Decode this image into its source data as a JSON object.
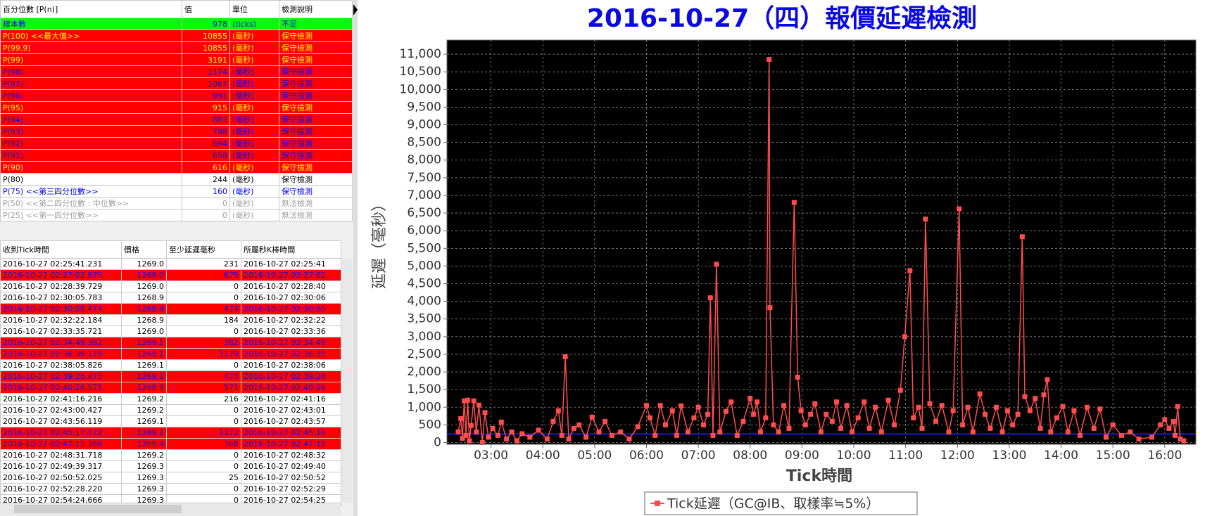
{
  "percentile_table": {
    "headers": [
      "百分位數 [P(n)]",
      "值",
      "單位",
      "檢測說明"
    ],
    "rows": [
      {
        "cells": [
          "樣本數",
          978,
          "(ticks)",
          "不足"
        ],
        "bg": "#00ff00",
        "fg": "#0000ff",
        "bold": false
      },
      {
        "cells": [
          "P(100) <<最大值>>",
          10855,
          "(毫秒)",
          "保守檢測"
        ],
        "bg": "#ff0000",
        "fg": "#ffff00",
        "bold": true
      },
      {
        "cells": [
          "P(99.9)",
          10855,
          "(毫秒)",
          "保守檢測"
        ],
        "bg": "#ff0000",
        "fg": "#ffff00",
        "bold": true
      },
      {
        "cells": [
          "P(99)",
          3191,
          "(毫秒)",
          "保守檢測"
        ],
        "bg": "#ff0000",
        "fg": "#ffff00",
        "bold": true
      },
      {
        "cells": [
          "P(98)",
          1174,
          "(毫秒)",
          "保守檢測"
        ],
        "bg": "#ff0000",
        "fg": "#0000ff",
        "bold": false
      },
      {
        "cells": [
          "P(97)",
          1067,
          "(毫秒)",
          "保守檢測"
        ],
        "bg": "#ff0000",
        "fg": "#0000ff",
        "bold": false
      },
      {
        "cells": [
          "P(96)",
          991,
          "(毫秒)",
          "保守檢測"
        ],
        "bg": "#ff0000",
        "fg": "#0000ff",
        "bold": false
      },
      {
        "cells": [
          "P(95)",
          915,
          "(毫秒)",
          "保守檢測"
        ],
        "bg": "#ff0000",
        "fg": "#ffff00",
        "bold": true
      },
      {
        "cells": [
          "P(94)",
          883,
          "(毫秒)",
          "保守檢測"
        ],
        "bg": "#ff0000",
        "fg": "#0000ff",
        "bold": false
      },
      {
        "cells": [
          "P(93)",
          798,
          "(毫秒)",
          "保守檢測"
        ],
        "bg": "#ff0000",
        "fg": "#0000ff",
        "bold": false
      },
      {
        "cells": [
          "P(92)",
          694,
          "(毫秒)",
          "保守檢測"
        ],
        "bg": "#ff0000",
        "fg": "#0000ff",
        "bold": false
      },
      {
        "cells": [
          "P(91)",
          658,
          "(毫秒)",
          "保守檢測"
        ],
        "bg": "#ff0000",
        "fg": "#0000ff",
        "bold": false
      },
      {
        "cells": [
          "P(90)",
          616,
          "(毫秒)",
          "保守檢測"
        ],
        "bg": "#ff0000",
        "fg": "#ffff00",
        "bold": true
      },
      {
        "cells": [
          "P(80)",
          244,
          "(毫秒)",
          "保守檢測"
        ],
        "bg": "#ffffff",
        "fg": "#000000",
        "bold": false
      },
      {
        "cells": [
          "P(75) <<第三四分位數>>",
          160,
          "(毫秒)",
          "保守檢測"
        ],
        "bg": "#ffffff",
        "fg": "#0000ff",
        "bold": true
      },
      {
        "cells": [
          "P(50) <<第二四分位數 : 中位數>>",
          0,
          "(毫秒)",
          "無法檢測"
        ],
        "bg": "#ffffff",
        "fg": "#a0a0a0",
        "bold": false
      },
      {
        "cells": [
          "P(25) <<第一四分位數>>",
          0,
          "(毫秒)",
          "無法檢測"
        ],
        "bg": "#ffffff",
        "fg": "#a0a0a0",
        "bold": false
      }
    ]
  },
  "tick_table": {
    "headers": [
      "收到Tick時間",
      "價格",
      "至少延遲毫秒",
      "所屬秒K棒時間"
    ],
    "rows": [
      {
        "cells": [
          "2016-10-27 02:25:41.231",
          "1269.0",
          231,
          "2016-10-27 02:25:41"
        ],
        "bg": "#ffffff",
        "fg": "#000000"
      },
      {
        "cells": [
          "2016-10-27 02:27:02.675",
          "1269.0",
          675,
          "2016-10-27 02:27:02"
        ],
        "bg": "#ff0000",
        "fg": "#0000ff"
      },
      {
        "cells": [
          "2016-10-27 02:28:39.729",
          "1269.0",
          0,
          "2016-10-27 02:28:40"
        ],
        "bg": "#ffffff",
        "fg": "#000000"
      },
      {
        "cells": [
          "2016-10-27 02:30:05.783",
          "1268.9",
          0,
          "2016-10-27 02:30:06"
        ],
        "bg": "#ffffff",
        "fg": "#000000"
      },
      {
        "cells": [
          "2016-10-27 02:30:50.474",
          "1268.8",
          474,
          "2016-10-27 02:30:50"
        ],
        "bg": "#ff0000",
        "fg": "#0000ff"
      },
      {
        "cells": [
          "2016-10-27 02:32:22.184",
          "1268.9",
          184,
          "2016-10-27 02:32:22"
        ],
        "bg": "#ffffff",
        "fg": "#000000"
      },
      {
        "cells": [
          "2016-10-27 02:33:35.721",
          "1269.0",
          0,
          "2016-10-27 02:33:36"
        ],
        "bg": "#ffffff",
        "fg": "#000000"
      },
      {
        "cells": [
          "2016-10-27 02:34:49.382",
          "1269.1",
          382,
          "2016-10-27 02:34:49"
        ],
        "bg": "#ff0000",
        "fg": "#0000ff"
      },
      {
        "cells": [
          "2016-10-27 02:36:36.179",
          "1269.1",
          1179,
          "2016-10-27 02:36:35"
        ],
        "bg": "#ff0000",
        "fg": "#0000ff"
      },
      {
        "cells": [
          "2016-10-27 02:38:05.826",
          "1269.1",
          0,
          "2016-10-27 02:38:06"
        ],
        "bg": "#ffffff",
        "fg": "#000000"
      },
      {
        "cells": [
          "2016-10-27 02:39:28.473",
          "1269.1",
          473,
          "2016-10-27 02:39:28"
        ],
        "bg": "#ff0000",
        "fg": "#0000ff"
      },
      {
        "cells": [
          "2016-10-27 02:40:26.571",
          "1268.9",
          571,
          "2016-10-27 02:40:26"
        ],
        "bg": "#ff0000",
        "fg": "#0000ff"
      },
      {
        "cells": [
          "2016-10-27 02:41:16.216",
          "1269.2",
          216,
          "2016-10-27 02:41:16"
        ],
        "bg": "#ffffff",
        "fg": "#000000"
      },
      {
        "cells": [
          "2016-10-27 02:43:00.427",
          "1269.2",
          0,
          "2016-10-27 02:43:01"
        ],
        "bg": "#ffffff",
        "fg": "#000000"
      },
      {
        "cells": [
          "2016-10-27 02:43:56.119",
          "1269.1",
          0,
          "2016-10-27 02:43:57"
        ],
        "bg": "#ffffff",
        "fg": "#000000"
      },
      {
        "cells": [
          "2016-10-27 02:45:17.172",
          "1269.1",
          1172,
          "2016-10-27 02:45:16"
        ],
        "bg": "#ff0000",
        "fg": "#0000ff"
      },
      {
        "cells": [
          "2016-10-27 02:47:15.368",
          "1269.4",
          368,
          "2016-10-27 02:47:15"
        ],
        "bg": "#ff0000",
        "fg": "#0000ff"
      },
      {
        "cells": [
          "2016-10-27 02:48:31.718",
          "1269.2",
          0,
          "2016-10-27 02:48:32"
        ],
        "bg": "#ffffff",
        "fg": "#000000"
      },
      {
        "cells": [
          "2016-10-27 02:49:39.317",
          "1269.3",
          0,
          "2016-10-27 02:49:40"
        ],
        "bg": "#ffffff",
        "fg": "#000000"
      },
      {
        "cells": [
          "2016-10-27 02:50:52.025",
          "1269.3",
          25,
          "2016-10-27 02:50:52"
        ],
        "bg": "#ffffff",
        "fg": "#000000"
      },
      {
        "cells": [
          "2016-10-27 02:52:28.220",
          "1269.3",
          0,
          "2016-10-27 02:52:29"
        ],
        "bg": "#ffffff",
        "fg": "#000000"
      },
      {
        "cells": [
          "2016-10-27 02:54:24.666",
          "1269.3",
          0,
          "2016-10-27 02:54:25"
        ],
        "bg": "#ffffff",
        "fg": "#000000"
      }
    ]
  },
  "chart": {
    "type": "line",
    "title": "2016-10-27（四）報價延遲檢測",
    "x_label": "Tick時間",
    "y_label": "延遲（毫秒）",
    "xlim": [
      "02:09",
      "16:36"
    ],
    "xticks": [
      "03:00",
      "04:00",
      "05:00",
      "06:00",
      "07:00",
      "08:00",
      "09:00",
      "10:00",
      "11:00",
      "12:00",
      "13:00",
      "14:00",
      "15:00",
      "16:00"
    ],
    "ylim": [
      -50,
      11400
    ],
    "yticks": [
      {
        "value": 0,
        "label": "0"
      },
      {
        "value": 500,
        "label": "500"
      },
      {
        "value": 1000,
        "label": "1,000"
      },
      {
        "value": 1500,
        "label": "1,500"
      },
      {
        "value": 2000,
        "label": "2,000"
      },
      {
        "value": 2500,
        "label": "2,500"
      },
      {
        "value": 3000,
        "label": "3,000"
      },
      {
        "value": 3500,
        "label": "3,500"
      },
      {
        "value": 4000,
        "label": "4,000"
      },
      {
        "value": 4500,
        "label": "4,500"
      },
      {
        "value": 5000,
        "label": "5,000"
      },
      {
        "value": 5500,
        "label": "5,500"
      },
      {
        "value": 6000,
        "label": "6,000"
      },
      {
        "value": 6500,
        "label": "6,500"
      },
      {
        "value": 7000,
        "label": "7,000"
      },
      {
        "value": 7500,
        "label": "7,500"
      },
      {
        "value": 8000,
        "label": "8,000"
      },
      {
        "value": 8500,
        "label": "8,500"
      },
      {
        "value": 9000,
        "label": "9,000"
      },
      {
        "value": 9500,
        "label": "9,500"
      },
      {
        "value": 10000,
        "label": "10,000"
      },
      {
        "value": 10500,
        "label": "10,500"
      },
      {
        "value": 11000,
        "label": "11,000"
      }
    ],
    "grid": true,
    "background": "#000000",
    "reference_line": {
      "value": 240,
      "color": "#1a1ad0"
    },
    "series": [
      {
        "name": "Tick延遲（GC@IB、取樣率≒5%）",
        "color": "#ff4d4d",
        "x": [
          "02:22",
          "02:25",
          "02:27",
          "02:29",
          "02:31",
          "02:33",
          "02:35",
          "02:37",
          "02:40",
          "02:43",
          "02:46",
          "02:50",
          "02:53",
          "02:57",
          "03:02",
          "03:08",
          "03:12",
          "03:18",
          "03:24",
          "03:30",
          "03:36",
          "03:45",
          "03:55",
          "04:05",
          "04:12",
          "04:18",
          "04:22",
          "04:26",
          "04:30",
          "04:36",
          "04:42",
          "04:50",
          "04:57",
          "05:05",
          "05:12",
          "05:20",
          "05:30",
          "05:40",
          "05:50",
          "06:00",
          "06:04",
          "06:10",
          "06:16",
          "06:22",
          "06:30",
          "06:35",
          "06:40",
          "06:48",
          "06:55",
          "07:00",
          "07:06",
          "07:11",
          "07:14",
          "07:17",
          "07:21",
          "07:25",
          "07:32",
          "07:38",
          "07:45",
          "07:52",
          "08:00",
          "08:04",
          "08:08",
          "08:12",
          "08:18",
          "08:22",
          "08:23",
          "08:27",
          "08:33",
          "08:39",
          "08:45",
          "08:51",
          "08:55",
          "08:59",
          "09:04",
          "09:10",
          "09:15",
          "09:22",
          "09:28",
          "09:35",
          "09:40",
          "09:45",
          "09:52",
          "09:58",
          "10:05",
          "10:12",
          "10:18",
          "10:25",
          "10:32",
          "10:40",
          "10:47",
          "10:54",
          "10:59",
          "11:05",
          "11:09",
          "11:15",
          "11:19",
          "11:23",
          "11:28",
          "11:35",
          "11:42",
          "11:50",
          "11:55",
          "12:02",
          "12:06",
          "12:12",
          "12:18",
          "12:26",
          "12:32",
          "12:38",
          "12:45",
          "12:52",
          "12:58",
          "13:04",
          "13:10",
          "13:15",
          "13:18",
          "13:24",
          "13:30",
          "13:36",
          "13:40",
          "13:44",
          "13:48",
          "13:55",
          "14:02",
          "14:08",
          "14:15",
          "14:22",
          "14:30",
          "14:38",
          "14:45",
          "14:52",
          "15:00",
          "15:10",
          "15:20",
          "15:30",
          "15:45",
          "15:55",
          "16:00",
          "16:05",
          "16:10",
          "16:12",
          "16:15",
          "16:18",
          "16:22"
        ],
        "values": [
          300,
          680,
          120,
          1180,
          200,
          1200,
          50,
          480,
          1180,
          300,
          1060,
          0,
          850,
          150,
          400,
          200,
          580,
          100,
          300,
          50,
          250,
          150,
          350,
          100,
          600,
          900,
          200,
          2430,
          100,
          400,
          500,
          150,
          720,
          300,
          600,
          200,
          300,
          100,
          450,
          1050,
          700,
          200,
          1050,
          500,
          900,
          200,
          1040,
          300,
          700,
          1000,
          500,
          800,
          4100,
          200,
          5050,
          300,
          880,
          1150,
          200,
          600,
          1250,
          800,
          1150,
          300,
          700,
          10850,
          3820,
          500,
          300,
          1050,
          400,
          6800,
          1850,
          900,
          500,
          800,
          1100,
          300,
          800,
          600,
          1150,
          400,
          1050,
          300,
          700,
          1150,
          400,
          1000,
          300,
          1200,
          500,
          1480,
          3000,
          4870,
          700,
          1000,
          400,
          6330,
          1100,
          600,
          1050,
          300,
          900,
          6620,
          500,
          1000,
          300,
          1380,
          800,
          400,
          1000,
          300,
          900,
          500,
          800,
          5830,
          1300,
          900,
          1250,
          400,
          1350,
          1780,
          300,
          700,
          1020,
          300,
          900,
          200,
          1000,
          400,
          950,
          150,
          500,
          200,
          300,
          100,
          150,
          500,
          650,
          400,
          600,
          200,
          1020,
          100,
          50
        ]
      }
    ]
  }
}
